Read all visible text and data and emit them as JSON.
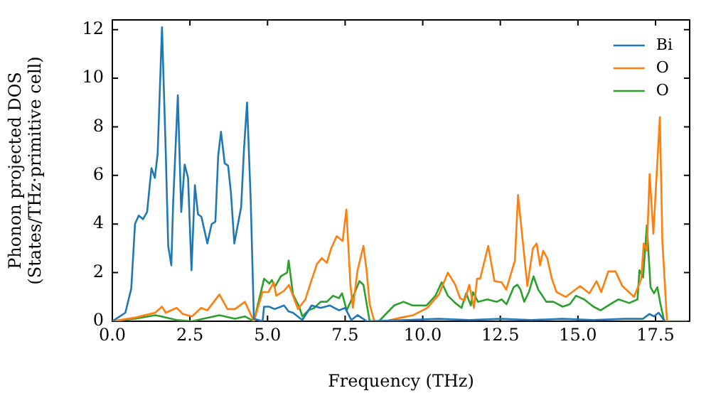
{
  "chart_data": {
    "type": "line",
    "xlabel": "Frequency (THz)",
    "ylabel": "Phonon projected DOS\n(States/THz·primitive cell)",
    "xlim": [
      0,
      18.6
    ],
    "ylim": [
      0,
      12.4
    ],
    "xticks": [
      {
        "value": 0,
        "label": "0.0"
      },
      {
        "value": 2.5,
        "label": "2.5"
      },
      {
        "value": 5,
        "label": "5.0"
      },
      {
        "value": 7.5,
        "label": "7.5"
      },
      {
        "value": 10,
        "label": "10.0"
      },
      {
        "value": 12.5,
        "label": "12.5"
      },
      {
        "value": 15,
        "label": "15.0"
      },
      {
        "value": 17.5,
        "label": "17.5"
      }
    ],
    "yticks": [
      0,
      2,
      4,
      6,
      8,
      10,
      12
    ],
    "grid": false,
    "legend": "top right",
    "marker": "none",
    "line_style": "solid",
    "series": [
      {
        "name": "Bi",
        "color": "#1f77b4",
        "x": [
          0,
          0.42,
          0.61,
          0.73,
          0.85,
          0.99,
          1.12,
          1.26,
          1.37,
          1.46,
          1.6,
          1.72,
          1.8,
          1.9,
          1.96,
          2.11,
          2.22,
          2.33,
          2.44,
          2.55,
          2.66,
          2.76,
          2.87,
          3.06,
          3.2,
          3.32,
          3.41,
          3.5,
          3.62,
          3.73,
          3.82,
          3.93,
          4.15,
          4.24,
          4.34,
          4.46,
          4.56,
          4.84,
          4.89,
          5.05,
          5.23,
          5.43,
          5.53,
          5.68,
          5.82,
          6.12,
          6.42,
          6.71,
          7.01,
          7.3,
          7.5,
          7.7,
          7.9,
          8.2,
          9.5,
          10.5,
          11.5,
          12.5,
          13.5,
          14.5,
          15.5,
          16.5,
          17.1,
          17.3,
          17.45,
          17.6,
          17.8
        ],
        "values": [
          0,
          0.35,
          1.35,
          4.0,
          4.35,
          4.2,
          4.5,
          6.3,
          5.9,
          6.9,
          12.1,
          7.0,
          3.1,
          2.3,
          4.9,
          9.3,
          4.5,
          6.45,
          5.9,
          2.1,
          5.6,
          4.4,
          4.3,
          3.2,
          4.0,
          4.1,
          6.8,
          7.8,
          6.5,
          6.4,
          5.3,
          3.2,
          4.7,
          7.05,
          9.0,
          4.9,
          0.1,
          0,
          0.6,
          0.6,
          0.5,
          0.6,
          0.65,
          0.4,
          0.35,
          0.05,
          0.65,
          0.55,
          0.65,
          0.45,
          0.55,
          0.05,
          0.25,
          0,
          0.05,
          0.1,
          0.05,
          0.1,
          0.05,
          0.1,
          0.05,
          0.1,
          0.1,
          0.3,
          0.2,
          0.35,
          0
        ]
      },
      {
        "name": "O",
        "color": "#ff7f0e",
        "x": [
          0,
          0.73,
          1.38,
          1.6,
          1.72,
          2.07,
          2.27,
          2.57,
          2.86,
          3.06,
          3.45,
          3.71,
          3.95,
          4.27,
          4.56,
          4.84,
          5.03,
          5.2,
          5.28,
          5.53,
          5.69,
          5.98,
          6.22,
          6.37,
          6.59,
          6.75,
          6.91,
          7.05,
          7.23,
          7.42,
          7.54,
          7.67,
          7.75,
          7.9,
          8.09,
          8.19,
          8.29,
          8.44,
          8.8,
          9.3,
          9.7,
          10.15,
          10.52,
          10.81,
          11.05,
          11.2,
          11.35,
          11.5,
          11.65,
          11.75,
          11.85,
          12.11,
          12.31,
          12.54,
          12.69,
          12.97,
          13.07,
          13.37,
          13.55,
          13.67,
          13.78,
          13.88,
          14.01,
          14.16,
          14.31,
          14.61,
          15.07,
          15.37,
          15.6,
          15.75,
          15.98,
          16.21,
          16.43,
          16.81,
          17.04,
          17.12,
          17.22,
          17.31,
          17.43,
          17.64,
          17.72,
          17.87
        ],
        "values": [
          0,
          0.15,
          0.35,
          0.6,
          0.35,
          0.55,
          0.3,
          0.2,
          0.55,
          0.45,
          1.1,
          0.5,
          0.5,
          0.8,
          0,
          1.2,
          1.2,
          1.6,
          1.05,
          1.25,
          1.5,
          0.5,
          0.9,
          1.5,
          2.35,
          2.6,
          2.4,
          3.0,
          3.5,
          3.3,
          4.6,
          1.5,
          0.55,
          2.1,
          3.1,
          2.1,
          0.7,
          0,
          0,
          0.15,
          0.25,
          0.55,
          1.1,
          2.0,
          1.5,
          0.95,
          0.85,
          1.5,
          0.55,
          1.75,
          1.75,
          3.1,
          1.65,
          1.6,
          1.3,
          2.5,
          5.2,
          1.45,
          3.0,
          3.2,
          2.3,
          2.9,
          2.6,
          1.75,
          1.2,
          1.0,
          1.45,
          1.15,
          1.65,
          1.2,
          2.05,
          2.05,
          1.45,
          1.0,
          1.75,
          3.2,
          2.9,
          6.05,
          3.6,
          8.4,
          3.3,
          0
        ]
      },
      {
        "name": "O",
        "color": "#2ca02c",
        "x": [
          0,
          0.73,
          1.38,
          1.58,
          2.07,
          2.57,
          3.45,
          3.95,
          4.27,
          4.56,
          4.89,
          5.06,
          5.14,
          5.23,
          5.43,
          5.63,
          5.68,
          5.82,
          6.02,
          6.12,
          6.32,
          6.51,
          6.71,
          6.91,
          7.11,
          7.3,
          7.4,
          7.55,
          7.8,
          7.96,
          8.09,
          8.29,
          8.59,
          9.08,
          9.38,
          9.67,
          10.12,
          10.41,
          10.61,
          10.81,
          11.05,
          11.25,
          11.4,
          11.55,
          11.62,
          11.78,
          12.08,
          12.39,
          12.54,
          12.7,
          12.93,
          13.05,
          13.15,
          13.27,
          13.42,
          13.57,
          13.72,
          13.83,
          13.98,
          14.21,
          14.51,
          14.74,
          14.94,
          15.2,
          15.5,
          15.73,
          16.04,
          16.31,
          16.65,
          16.92,
          16.98,
          17.1,
          17.22,
          17.34,
          17.45,
          17.56,
          17.66,
          17.78,
          18.5
        ],
        "values": [
          0,
          0.1,
          0.25,
          0.2,
          0.05,
          0,
          0.25,
          0.1,
          0.2,
          0,
          1.75,
          1.55,
          1.7,
          1.4,
          1.85,
          2.0,
          2.5,
          1.1,
          0.6,
          0.2,
          0.45,
          0.55,
          0.8,
          0.8,
          1.05,
          0.95,
          1.15,
          0.45,
          1.15,
          1.65,
          1.5,
          0,
          0,
          0.65,
          0.8,
          0.65,
          0.65,
          1.05,
          1.6,
          1.05,
          0.75,
          0.55,
          1.15,
          0.65,
          1.2,
          0.8,
          0.9,
          0.8,
          0.9,
          0.7,
          1.4,
          1.5,
          1.3,
          0.8,
          1.2,
          1.85,
          1.3,
          1.1,
          0.8,
          0.8,
          0.6,
          0.7,
          1.05,
          0.9,
          0.6,
          0.45,
          0.7,
          0.9,
          0.75,
          0.9,
          2.1,
          1.8,
          3.95,
          1.4,
          1.15,
          1.4,
          0.7,
          0,
          0
        ]
      }
    ]
  }
}
